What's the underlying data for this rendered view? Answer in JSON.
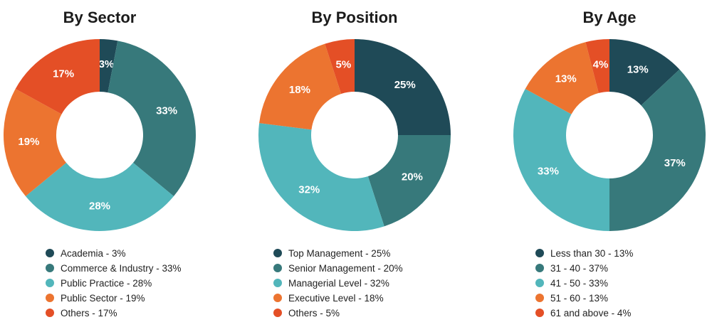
{
  "colors": {
    "dark_teal": "#1f4a57",
    "teal": "#37797b",
    "light_teal": "#52b6bb",
    "orange": "#ec7430",
    "red_orange": "#e44f26"
  },
  "chart_data": [
    {
      "type": "pie",
      "title": "By Sector",
      "donut": true,
      "categories": [
        "Academia",
        "Commerce & Industry",
        "Public Practice",
        "Public Sector",
        "Others"
      ],
      "values": [
        3,
        33,
        28,
        19,
        17
      ],
      "value_labels": [
        "3%",
        "33%",
        "28%",
        "19%",
        "17%"
      ],
      "legend": [
        "Academia - 3%",
        "Commerce & Industry - 33%",
        "Public Practice - 28%",
        "Public Sector - 19%",
        "Others - 17%"
      ],
      "colors": [
        "#1f4a57",
        "#37797b",
        "#52b6bb",
        "#ec7430",
        "#e44f26"
      ],
      "legend_position": "bottom"
    },
    {
      "type": "pie",
      "title": "By Position",
      "donut": true,
      "categories": [
        "Top Management",
        "Senior Management",
        "Managerial Level",
        "Executive Level",
        "Others"
      ],
      "values": [
        25,
        20,
        32,
        18,
        5
      ],
      "value_labels": [
        "25%",
        "20%",
        "32%",
        "18%",
        "5%"
      ],
      "legend": [
        "Top Management - 25%",
        "Senior Management - 20%",
        "Managerial Level - 32%",
        "Executive Level - 18%",
        "Others - 5%"
      ],
      "colors": [
        "#1f4a57",
        "#37797b",
        "#52b6bb",
        "#ec7430",
        "#e44f26"
      ],
      "legend_position": "bottom"
    },
    {
      "type": "pie",
      "title": "By Age",
      "donut": true,
      "categories": [
        "Less than 30",
        "31 - 40",
        "41 - 50",
        "51 - 60",
        "61 and above"
      ],
      "values": [
        13,
        37,
        33,
        13,
        4
      ],
      "value_labels": [
        "13%",
        "37%",
        "33%",
        "13%",
        "4%"
      ],
      "legend": [
        "Less than 30 - 13%",
        "31 - 40 - 37%",
        "41 - 50 - 33%",
        "51 - 60 - 13%",
        "61 and above - 4%"
      ],
      "colors": [
        "#1f4a57",
        "#37797b",
        "#52b6bb",
        "#ec7430",
        "#e44f26"
      ],
      "legend_position": "bottom"
    }
  ]
}
